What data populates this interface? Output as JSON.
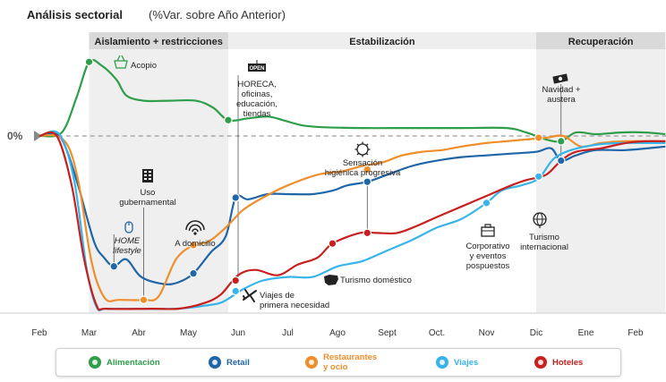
{
  "chart_data": {
    "type": "line",
    "title": "Análisis sectorial",
    "subtitle": "(%Var. sobre Año Anterior)",
    "zero_label": "0%",
    "x_labels": [
      "Feb",
      "Mar",
      "Abr",
      "May",
      "Jun",
      "Jul",
      "Ago",
      "Sept",
      "Oct.",
      "Nov",
      "Dic",
      "Ene",
      "Feb"
    ],
    "x_range": [
      0,
      12.6
    ],
    "y_range": [
      -100,
      40
    ],
    "phases": [
      {
        "label": "Aislamiento + restricciones",
        "start": 1,
        "end": 3.8,
        "shaded": true
      },
      {
        "label": "Estabilización",
        "start": 3.8,
        "end": 10,
        "shaded": false
      },
      {
        "label": "Recuperación",
        "start": 10,
        "end": 12.6,
        "shaded": true
      }
    ],
    "series": [
      {
        "name": "Alimentación",
        "color": "#2e9e4a",
        "label_color": "#2e9e4a",
        "points": [
          [
            0,
            0
          ],
          [
            0.45,
            2
          ],
          [
            0.75,
            22
          ],
          [
            1,
            42
          ],
          [
            1.25,
            40
          ],
          [
            1.55,
            32
          ],
          [
            1.75,
            23
          ],
          [
            2.1,
            20
          ],
          [
            2.6,
            20
          ],
          [
            3.15,
            20
          ],
          [
            3.5,
            16
          ],
          [
            3.8,
            9
          ],
          [
            4.2,
            10
          ],
          [
            4.6,
            11
          ],
          [
            4.9,
            9
          ],
          [
            5.3,
            6
          ],
          [
            5.7,
            5
          ],
          [
            6.5,
            4.5
          ],
          [
            7.5,
            4.5
          ],
          [
            8.5,
            4.5
          ],
          [
            9.4,
            4.5
          ],
          [
            9.8,
            2
          ],
          [
            10.2,
            -2
          ],
          [
            10.5,
            -3
          ],
          [
            10.8,
            2
          ],
          [
            11.2,
            1
          ],
          [
            11.7,
            2
          ],
          [
            12.2,
            2
          ],
          [
            12.6,
            1
          ]
        ]
      },
      {
        "name": "Retail",
        "color": "#1f66a8",
        "label_color": "#1f66a8",
        "points": [
          [
            0,
            0
          ],
          [
            0.35,
            1
          ],
          [
            0.55,
            -8
          ],
          [
            0.8,
            -30
          ],
          [
            1.1,
            -60
          ],
          [
            1.3,
            -69
          ],
          [
            1.5,
            -74
          ],
          [
            1.75,
            -70
          ],
          [
            2.05,
            -80
          ],
          [
            2.5,
            -84
          ],
          [
            2.8,
            -83
          ],
          [
            3.1,
            -78
          ],
          [
            3.45,
            -66
          ],
          [
            3.75,
            -57
          ],
          [
            3.95,
            -35
          ],
          [
            4.2,
            -36
          ],
          [
            4.6,
            -33
          ],
          [
            5,
            -33
          ],
          [
            5.5,
            -33
          ],
          [
            5.9,
            -31
          ],
          [
            6.2,
            -28
          ],
          [
            6.6,
            -26
          ],
          [
            7,
            -22
          ],
          [
            7.5,
            -17
          ],
          [
            8,
            -14
          ],
          [
            8.5,
            -12
          ],
          [
            9,
            -11
          ],
          [
            9.5,
            -10
          ],
          [
            10,
            -9
          ],
          [
            10.3,
            -7
          ],
          [
            10.5,
            -14
          ],
          [
            10.8,
            -11
          ],
          [
            11.2,
            -8
          ],
          [
            11.8,
            -8
          ],
          [
            12.6,
            -6
          ]
        ]
      },
      {
        "name": "Restaurantes y ocio",
        "color": "#ef8f2c",
        "label_color": "#ef8f2c",
        "points": [
          [
            0,
            0
          ],
          [
            0.35,
            0
          ],
          [
            0.6,
            -7
          ],
          [
            0.8,
            -28
          ],
          [
            1.0,
            -64
          ],
          [
            1.15,
            -82
          ],
          [
            1.35,
            -93
          ],
          [
            1.6,
            -93
          ],
          [
            2.1,
            -93
          ],
          [
            2.4,
            -91
          ],
          [
            2.75,
            -70
          ],
          [
            3.1,
            -62
          ],
          [
            3.4,
            -60
          ],
          [
            3.75,
            -52
          ],
          [
            4.1,
            -42
          ],
          [
            4.5,
            -35
          ],
          [
            5,
            -28
          ],
          [
            5.6,
            -22
          ],
          [
            6.1,
            -20
          ],
          [
            6.5,
            -17
          ],
          [
            6.9,
            -15
          ],
          [
            7.3,
            -11
          ],
          [
            7.7,
            -9
          ],
          [
            8.1,
            -8
          ],
          [
            8.5,
            -6
          ],
          [
            9,
            -4
          ],
          [
            9.4,
            -3
          ],
          [
            9.8,
            -2
          ],
          [
            10.2,
            -1
          ],
          [
            10.55,
            0
          ],
          [
            10.9,
            -6
          ],
          [
            11.3,
            -4
          ],
          [
            11.8,
            -3
          ],
          [
            12.6,
            -3
          ]
        ]
      },
      {
        "name": "Viajes",
        "color": "#37b4ea",
        "label_color": "#37b4ea",
        "points": [
          [
            0,
            0
          ],
          [
            0.4,
            1
          ],
          [
            0.7,
            -25
          ],
          [
            0.95,
            -75
          ],
          [
            1.15,
            -97
          ],
          [
            1.35,
            -98
          ],
          [
            2,
            -98
          ],
          [
            2.75,
            -98
          ],
          [
            3.4,
            -96
          ],
          [
            3.7,
            -94
          ],
          [
            4.1,
            -87
          ],
          [
            4.5,
            -82
          ],
          [
            5,
            -80
          ],
          [
            5.5,
            -80
          ],
          [
            6,
            -74
          ],
          [
            6.5,
            -71
          ],
          [
            7,
            -65
          ],
          [
            7.5,
            -59
          ],
          [
            8,
            -52
          ],
          [
            8.5,
            -47
          ],
          [
            9,
            -38
          ],
          [
            9.3,
            -31
          ],
          [
            9.7,
            -28
          ],
          [
            10.05,
            -24
          ],
          [
            10.35,
            -13
          ],
          [
            10.7,
            -8
          ],
          [
            11.2,
            -5
          ],
          [
            11.7,
            -4
          ],
          [
            12.2,
            -4
          ],
          [
            12.6,
            -4
          ]
        ]
      },
      {
        "name": "Hoteles",
        "color": "#c8201e",
        "label_color": "#c8201e",
        "points": [
          [
            0,
            0
          ],
          [
            0.35,
            0
          ],
          [
            0.65,
            -28
          ],
          [
            0.9,
            -70
          ],
          [
            1.15,
            -96
          ],
          [
            1.35,
            -98
          ],
          [
            2.3,
            -98
          ],
          [
            2.8,
            -98
          ],
          [
            3.3,
            -95
          ],
          [
            3.65,
            -90
          ],
          [
            4.0,
            -79
          ],
          [
            4.35,
            -76
          ],
          [
            4.8,
            -79
          ],
          [
            5.2,
            -73
          ],
          [
            5.6,
            -69
          ],
          [
            5.9,
            -61
          ],
          [
            6.45,
            -55
          ],
          [
            6.8,
            -55
          ],
          [
            7.2,
            -55
          ],
          [
            7.6,
            -51
          ],
          [
            8,
            -46
          ],
          [
            8.5,
            -40
          ],
          [
            9,
            -34
          ],
          [
            9.5,
            -28
          ],
          [
            9.8,
            -25
          ],
          [
            10.2,
            -22
          ],
          [
            10.5,
            -14
          ],
          [
            10.8,
            -9
          ],
          [
            11.3,
            -7
          ],
          [
            11.8,
            -4
          ],
          [
            12.2,
            -3
          ],
          [
            12.6,
            -3
          ]
        ]
      }
    ],
    "markers": [
      {
        "series": "Alimentación",
        "x": 1.0,
        "y": 42
      },
      {
        "series": "Alimentación",
        "x": 3.8,
        "y": 9
      },
      {
        "series": "Alimentación",
        "x": 10.5,
        "y": -3
      },
      {
        "series": "Retail",
        "x": 1.5,
        "y": -74
      },
      {
        "series": "Retail",
        "x": 3.1,
        "y": -78
      },
      {
        "series": "Retail",
        "x": 3.95,
        "y": -35
      },
      {
        "series": "Retail",
        "x": 6.6,
        "y": -26
      },
      {
        "series": "Retail",
        "x": 10.5,
        "y": -14
      },
      {
        "series": "Restaurantes y ocio",
        "x": 2.1,
        "y": -93
      },
      {
        "series": "Restaurantes y ocio",
        "x": 3.1,
        "y": -62
      },
      {
        "series": "Restaurantes y ocio",
        "x": 6.6,
        "y": -19
      },
      {
        "series": "Restaurantes y ocio",
        "x": 10.05,
        "y": -1
      },
      {
        "series": "Viajes",
        "x": 3.95,
        "y": -88
      },
      {
        "series": "Viajes",
        "x": 9.0,
        "y": -38
      },
      {
        "series": "Viajes",
        "x": 10.05,
        "y": -23
      },
      {
        "series": "Hoteles",
        "x": 5.9,
        "y": -61
      },
      {
        "series": "Hoteles",
        "x": 6.6,
        "y": -55
      },
      {
        "series": "Hoteles",
        "x": 3.95,
        "y": -82
      }
    ],
    "annotations": [
      {
        "id": "acopio",
        "text": [
          "Acopio"
        ],
        "color": "#2e9e4a",
        "icon": "basket-icon"
      },
      {
        "id": "uso",
        "text": [
          "Uso",
          "gubernamental"
        ],
        "color": "#222",
        "icon": "building-icon"
      },
      {
        "id": "home",
        "text": [
          "HOME",
          "lifestyle"
        ],
        "color": "#1f66a8",
        "italic": true,
        "icon": "mouse-icon"
      },
      {
        "id": "domicilio",
        "text": [
          "A domicilio"
        ],
        "color": "#222",
        "icon": "wifi-icon"
      },
      {
        "id": "horeca",
        "text": [
          "HORECA,",
          "oficinas,",
          "educación,",
          "tiendas"
        ],
        "color": "#222",
        "icon": "open-sign-icon",
        "icon_text": "OPEN"
      },
      {
        "id": "viajes_nec",
        "text": [
          "Viajes de",
          "primera necesidad"
        ],
        "color": "#222",
        "icon": "plane-icon"
      },
      {
        "id": "sensacion",
        "text": [
          "Sensación",
          "higiénica progresiva"
        ],
        "color": "#222",
        "icon": "virus-icon"
      },
      {
        "id": "turismo_dom",
        "text": [
          "Turismo doméstico"
        ],
        "color": "#c8201e",
        "icon": "spain-map-icon"
      },
      {
        "id": "corporativo",
        "text": [
          "Corporativo",
          "y eventos",
          "pospuestos"
        ],
        "color": "#222",
        "icon": "briefcase-icon"
      },
      {
        "id": "turismo_int",
        "text": [
          "Turismo",
          "internacional"
        ],
        "color": "#222",
        "icon": "globe-icon"
      },
      {
        "id": "navidad",
        "text": [
          "Navidad +",
          "austera"
        ],
        "color": "#222",
        "icon": "money-icon"
      }
    ]
  },
  "legend": [
    {
      "label": [
        "Alimentación"
      ],
      "color": "#2e9e4a",
      "icon": "apple-icon"
    },
    {
      "label": [
        "Retail"
      ],
      "color": "#1f66a8",
      "icon": "cart-icon"
    },
    {
      "label": [
        "Restaurantes",
        "y ocio"
      ],
      "color": "#ef8f2c",
      "icon": "cutlery-icon"
    },
    {
      "label": [
        "Viajes"
      ],
      "color": "#37b4ea",
      "icon": "plane-icon"
    },
    {
      "label": [
        "Hoteles"
      ],
      "color": "#c8201e",
      "icon": "hotel-icon"
    }
  ]
}
